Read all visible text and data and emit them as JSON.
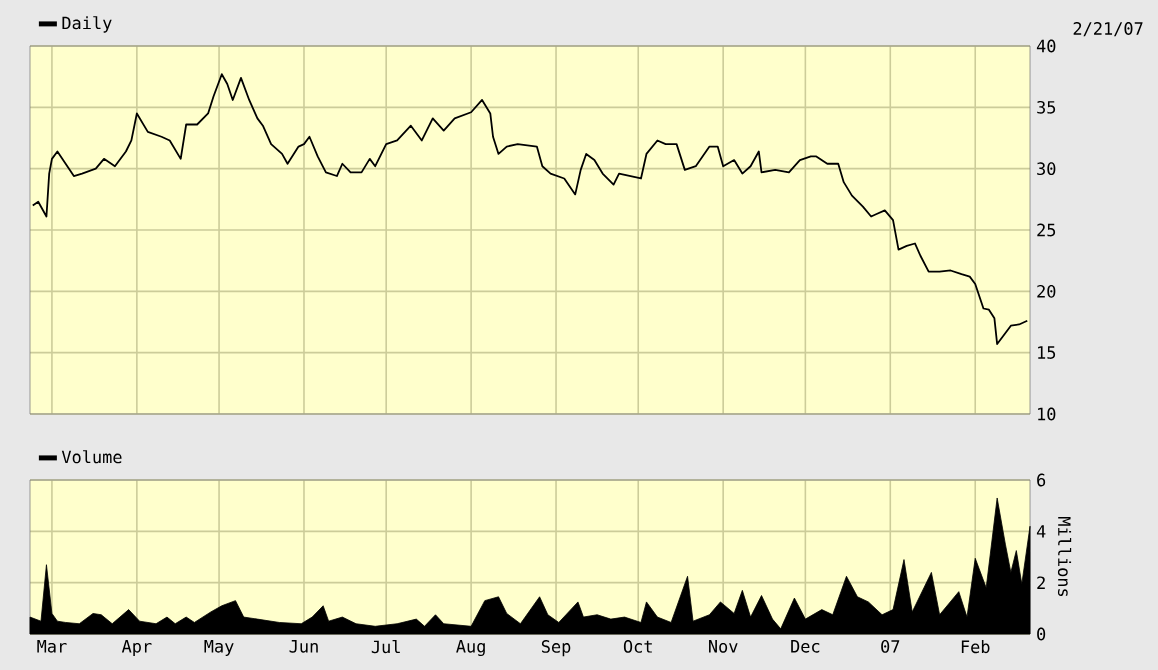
{
  "chart_data": [
    {
      "type": "line",
      "legend": "top left",
      "grid": true,
      "tick_labels": "y",
      "annotations": [
        "2/21/07"
      ],
      "xlim": [
        "2006-02-21",
        "2007-02-21"
      ],
      "xticks": [
        {
          "value": "2006-03-01",
          "label": null
        },
        {
          "value": "2006-04-01",
          "label": null
        },
        {
          "value": "2006-05-01",
          "label": null
        },
        {
          "value": "2006-06-01",
          "label": null
        },
        {
          "value": "2006-07-01",
          "label": null
        },
        {
          "value": "2006-08-01",
          "label": null
        },
        {
          "value": "2006-09-01",
          "label": null
        },
        {
          "value": "2006-10-01",
          "label": null
        },
        {
          "value": "2006-11-01",
          "label": null
        },
        {
          "value": "2006-12-01",
          "label": null
        },
        {
          "value": "2007-01-01",
          "label": null
        },
        {
          "value": "2007-02-01",
          "label": null
        }
      ],
      "ylim": [
        10,
        40
      ],
      "yticks": [
        10,
        15,
        20,
        25,
        30,
        35,
        40
      ],
      "series": [
        {
          "name": "Daily",
          "color": "#000000",
          "x": [
            "2006-02-22",
            "2006-02-24",
            "2006-02-27",
            "2006-02-28",
            "2006-03-01",
            "2006-03-03",
            "2006-03-06",
            "2006-03-09",
            "2006-03-12",
            "2006-03-17",
            "2006-03-20",
            "2006-03-24",
            "2006-03-28",
            "2006-03-30",
            "2006-04-01",
            "2006-04-05",
            "2006-04-10",
            "2006-04-13",
            "2006-04-17",
            "2006-04-19",
            "2006-04-23",
            "2006-04-27",
            "2006-04-29",
            "2006-05-02",
            "2006-05-04",
            "2006-05-06",
            "2006-05-09",
            "2006-05-12",
            "2006-05-15",
            "2006-05-17",
            "2006-05-20",
            "2006-05-24",
            "2006-05-26",
            "2006-05-30",
            "2006-06-01",
            "2006-06-03",
            "2006-06-06",
            "2006-06-09",
            "2006-06-13",
            "2006-06-15",
            "2006-06-18",
            "2006-06-22",
            "2006-06-25",
            "2006-06-27",
            "2006-07-01",
            "2006-07-05",
            "2006-07-10",
            "2006-07-14",
            "2006-07-18",
            "2006-07-22",
            "2006-07-26",
            "2006-08-01",
            "2006-08-05",
            "2006-08-08",
            "2006-08-09",
            "2006-08-11",
            "2006-08-14",
            "2006-08-18",
            "2006-08-25",
            "2006-08-27",
            "2006-08-30",
            "2006-09-04",
            "2006-09-08",
            "2006-09-10",
            "2006-09-12",
            "2006-09-15",
            "2006-09-18",
            "2006-09-22",
            "2006-09-24",
            "2006-09-28",
            "2006-10-02",
            "2006-10-04",
            "2006-10-08",
            "2006-10-11",
            "2006-10-15",
            "2006-10-18",
            "2006-10-22",
            "2006-10-27",
            "2006-10-30",
            "2006-11-01",
            "2006-11-05",
            "2006-11-08",
            "2006-11-11",
            "2006-11-14",
            "2006-11-15",
            "2006-11-20",
            "2006-11-25",
            "2006-11-29",
            "2006-12-03",
            "2006-12-05",
            "2006-12-09",
            "2006-12-13",
            "2006-12-15",
            "2006-12-18",
            "2006-12-22",
            "2006-12-25",
            "2006-12-27",
            "2006-12-30",
            "2007-01-02",
            "2007-01-04",
            "2007-01-07",
            "2007-01-10",
            "2007-01-12",
            "2007-01-15",
            "2007-01-19",
            "2007-01-23",
            "2007-01-27",
            "2007-01-30",
            "2007-02-01",
            "2007-02-04",
            "2007-02-06",
            "2007-02-08",
            "2007-02-09",
            "2007-02-11",
            "2007-02-14",
            "2007-02-17",
            "2007-02-20"
          ],
          "values": [
            27.0,
            27.3,
            26.1,
            29.6,
            30.8,
            31.4,
            30.4,
            29.4,
            29.6,
            30.0,
            30.8,
            30.2,
            31.4,
            32.3,
            34.5,
            33.0,
            32.6,
            32.3,
            30.8,
            33.6,
            33.6,
            34.5,
            35.9,
            37.7,
            36.9,
            35.6,
            37.4,
            35.6,
            34.1,
            33.5,
            32.0,
            31.2,
            30.4,
            31.8,
            32.0,
            32.6,
            31.0,
            29.7,
            29.4,
            30.4,
            29.7,
            29.7,
            30.8,
            30.2,
            32.0,
            32.3,
            33.5,
            32.3,
            34.1,
            33.1,
            34.1,
            34.6,
            35.6,
            34.5,
            32.6,
            31.2,
            31.8,
            32.0,
            31.8,
            30.2,
            29.6,
            29.2,
            27.9,
            29.9,
            31.2,
            30.7,
            29.6,
            28.7,
            29.6,
            29.4,
            29.2,
            31.2,
            32.3,
            32.0,
            32.0,
            29.9,
            30.2,
            31.8,
            31.8,
            30.2,
            30.7,
            29.6,
            30.2,
            31.4,
            29.7,
            29.9,
            29.7,
            30.7,
            31.0,
            31.0,
            30.4,
            30.4,
            28.9,
            27.8,
            26.9,
            26.1,
            26.3,
            26.6,
            25.8,
            23.4,
            23.7,
            23.9,
            22.9,
            21.6,
            21.6,
            21.7,
            21.4,
            21.2,
            20.6,
            18.6,
            18.5,
            17.8,
            15.7,
            16.3,
            17.2,
            17.3,
            17.6
          ]
        }
      ]
    },
    {
      "type": "area",
      "legend": "top left",
      "grid": true,
      "ylabel": "Millions",
      "xlim": [
        "2006-02-21",
        "2007-02-21"
      ],
      "xticks": [
        {
          "value": "2006-03-01",
          "label": "Mar"
        },
        {
          "value": "2006-04-01",
          "label": "Apr"
        },
        {
          "value": "2006-05-01",
          "label": "May"
        },
        {
          "value": "2006-06-01",
          "label": "Jun"
        },
        {
          "value": "2006-07-01",
          "label": "Jul"
        },
        {
          "value": "2006-08-01",
          "label": "Aug"
        },
        {
          "value": "2006-09-01",
          "label": "Sep"
        },
        {
          "value": "2006-10-01",
          "label": "Oct"
        },
        {
          "value": "2006-11-01",
          "label": "Nov"
        },
        {
          "value": "2006-12-01",
          "label": "Dec"
        },
        {
          "value": "2007-01-01",
          "label": "07"
        },
        {
          "value": "2007-02-01",
          "label": "Feb"
        }
      ],
      "ylim": [
        0,
        6
      ],
      "yticks": [
        0,
        2,
        4,
        6
      ],
      "series": [
        {
          "name": "Volume",
          "color": "#000000",
          "x": [
            "2006-02-21",
            "2006-02-25",
            "2006-02-27",
            "2006-03-01",
            "2006-03-03",
            "2006-03-06",
            "2006-03-11",
            "2006-03-16",
            "2006-03-19",
            "2006-03-23",
            "2006-03-29",
            "2006-04-02",
            "2006-04-08",
            "2006-04-12",
            "2006-04-15",
            "2006-04-19",
            "2006-04-22",
            "2006-04-28",
            "2006-05-02",
            "2006-05-07",
            "2006-05-10",
            "2006-05-15",
            "2006-05-23",
            "2006-05-31",
            "2006-06-04",
            "2006-06-08",
            "2006-06-10",
            "2006-06-15",
            "2006-06-20",
            "2006-06-27",
            "2006-07-05",
            "2006-07-12",
            "2006-07-15",
            "2006-07-19",
            "2006-07-22",
            "2006-08-01",
            "2006-08-06",
            "2006-08-11",
            "2006-08-14",
            "2006-08-19",
            "2006-08-26",
            "2006-08-29",
            "2006-09-02",
            "2006-09-09",
            "2006-09-11",
            "2006-09-16",
            "2006-09-21",
            "2006-09-26",
            "2006-10-02",
            "2006-10-04",
            "2006-10-08",
            "2006-10-13",
            "2006-10-19",
            "2006-10-21",
            "2006-10-27",
            "2006-10-31",
            "2006-11-05",
            "2006-11-08",
            "2006-11-11",
            "2006-11-15",
            "2006-11-19",
            "2006-11-22",
            "2006-11-27",
            "2006-12-01",
            "2006-12-07",
            "2006-12-11",
            "2006-12-16",
            "2006-12-20",
            "2006-12-24",
            "2006-12-29",
            "2007-01-02",
            "2007-01-06",
            "2007-01-09",
            "2007-01-16",
            "2007-01-19",
            "2007-01-26",
            "2007-01-29",
            "2007-02-01",
            "2007-02-05",
            "2007-02-09",
            "2007-02-12",
            "2007-02-14",
            "2007-02-16",
            "2007-02-18",
            "2007-02-21"
          ],
          "values": [
            0.66,
            0.5,
            2.7,
            0.8,
            0.5,
            0.45,
            0.4,
            0.8,
            0.75,
            0.4,
            0.95,
            0.5,
            0.4,
            0.66,
            0.4,
            0.66,
            0.45,
            0.86,
            1.1,
            1.3,
            0.66,
            0.58,
            0.45,
            0.4,
            0.66,
            1.1,
            0.5,
            0.66,
            0.4,
            0.3,
            0.4,
            0.58,
            0.3,
            0.75,
            0.4,
            0.3,
            1.3,
            1.45,
            0.8,
            0.4,
            1.45,
            0.75,
            0.45,
            1.25,
            0.66,
            0.75,
            0.58,
            0.66,
            0.45,
            1.25,
            0.66,
            0.45,
            2.25,
            0.5,
            0.75,
            1.25,
            0.8,
            1.7,
            0.66,
            1.5,
            0.58,
            0.2,
            1.4,
            0.58,
            0.95,
            0.75,
            2.25,
            1.45,
            1.25,
            0.75,
            0.95,
            2.9,
            0.86,
            2.4,
            0.75,
            1.65,
            0.66,
            2.95,
            1.8,
            5.3,
            3.5,
            2.4,
            3.25,
            1.95,
            4.2
          ]
        }
      ]
    }
  ]
}
